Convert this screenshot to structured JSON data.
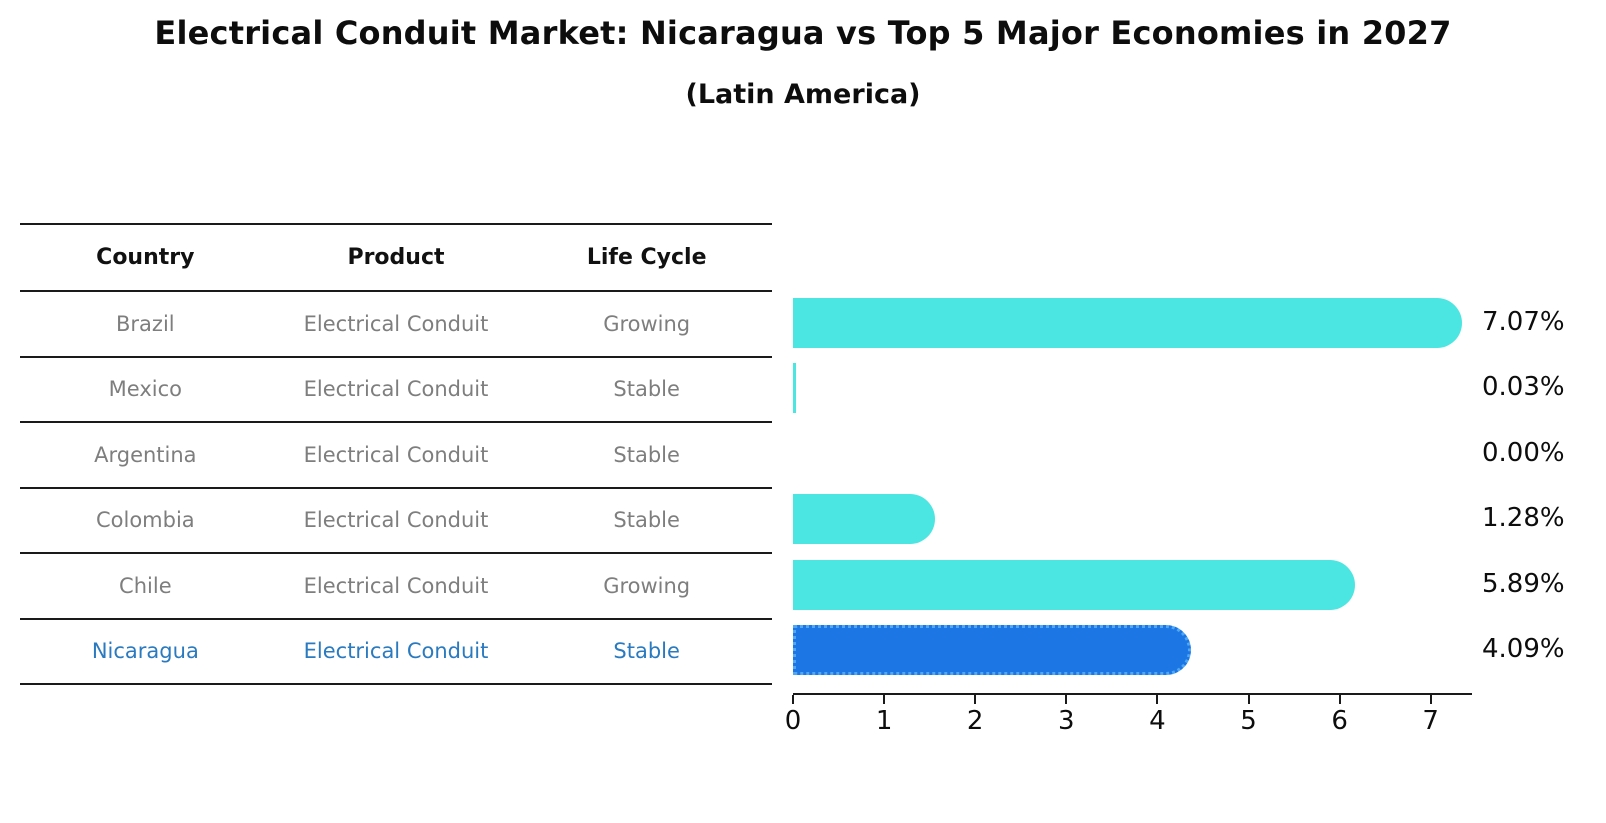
{
  "title": "Electrical Conduit Market: Nicaragua vs Top 5 Major Economies in 2027",
  "subtitle": "(Latin America)",
  "table": {
    "headers": [
      "Country",
      "Product",
      "Life Cycle"
    ],
    "rows": [
      {
        "country": "Brazil",
        "product": "Electrical Conduit",
        "life_cycle": "Growing",
        "highlight": false
      },
      {
        "country": "Mexico",
        "product": "Electrical Conduit",
        "life_cycle": "Stable",
        "highlight": false
      },
      {
        "country": "Argentina",
        "product": "Electrical Conduit",
        "life_cycle": "Stable",
        "highlight": false
      },
      {
        "country": "Colombia",
        "product": "Electrical Conduit",
        "life_cycle": "Stable",
        "highlight": false
      },
      {
        "country": "Chile",
        "product": "Electrical Conduit",
        "life_cycle": "Growing",
        "highlight": false
      },
      {
        "country": "Nicaragua",
        "product": "Electrical Conduit",
        "life_cycle": "Stable",
        "highlight": true
      }
    ]
  },
  "chart_data": {
    "type": "bar",
    "orientation": "horizontal",
    "categories": [
      "Brazil",
      "Mexico",
      "Argentina",
      "Colombia",
      "Chile",
      "Nicaragua"
    ],
    "values": [
      7.07,
      0.03,
      0.0,
      1.28,
      5.89,
      4.09
    ],
    "value_labels": [
      "7.07%",
      "0.03%",
      "0.00%",
      "1.28%",
      "5.89%",
      "4.09%"
    ],
    "x_ticks": [
      "0",
      "1",
      "2",
      "3",
      "4",
      "5",
      "6",
      "7"
    ],
    "xlim": [
      0,
      7.45
    ],
    "xlabel": "",
    "ylabel": "",
    "grid": false,
    "legend": false,
    "highlight_index": 5,
    "bar_color": "#4be6e1",
    "highlight_color": "#1c76e3",
    "highlight_edge_color": "#4fa8f5",
    "highlight_text_color": "#2a7ac0"
  }
}
